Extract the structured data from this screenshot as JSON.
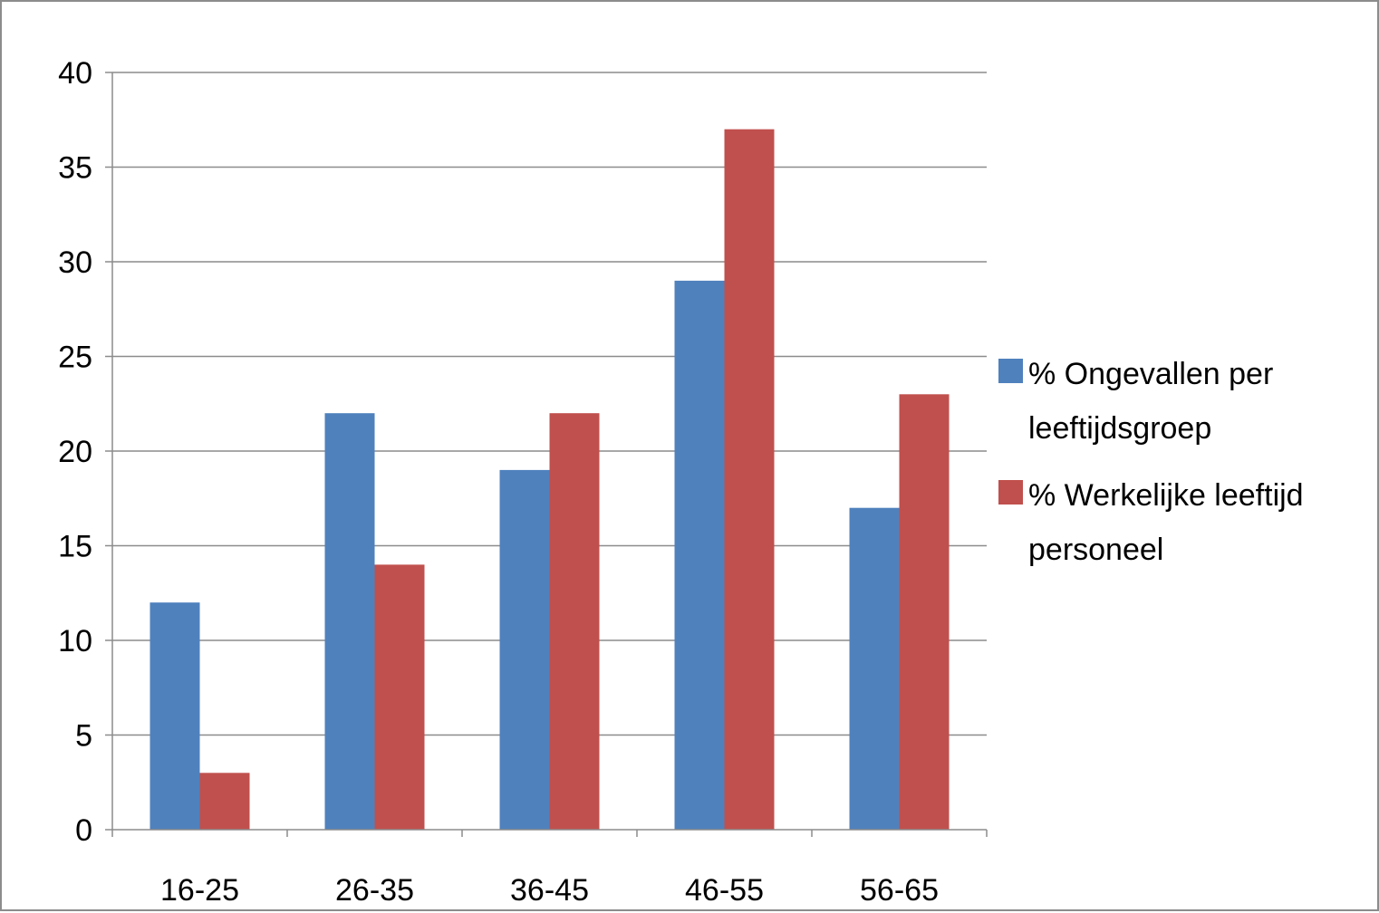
{
  "chart_data": {
    "type": "bar",
    "title": "",
    "xlabel": "",
    "ylabel": "",
    "categories": [
      "16-25",
      "26-35",
      "36-45",
      "46-55",
      "56-65"
    ],
    "ylim": [
      0,
      40
    ],
    "yticks": [
      0,
      5,
      10,
      15,
      20,
      25,
      30,
      35,
      40
    ],
    "grid": true,
    "legend_position": "right",
    "series": [
      {
        "name_lines": [
          "% Ongevallen per",
          "leeftijdsgroep"
        ],
        "color": "#4f81bd",
        "values": [
          12,
          22,
          19,
          29,
          17
        ]
      },
      {
        "name_lines": [
          "% Werkelijke leeftijd",
          "personeel"
        ],
        "color": "#c0504d",
        "values": [
          3,
          14,
          22,
          37,
          23
        ]
      }
    ]
  }
}
